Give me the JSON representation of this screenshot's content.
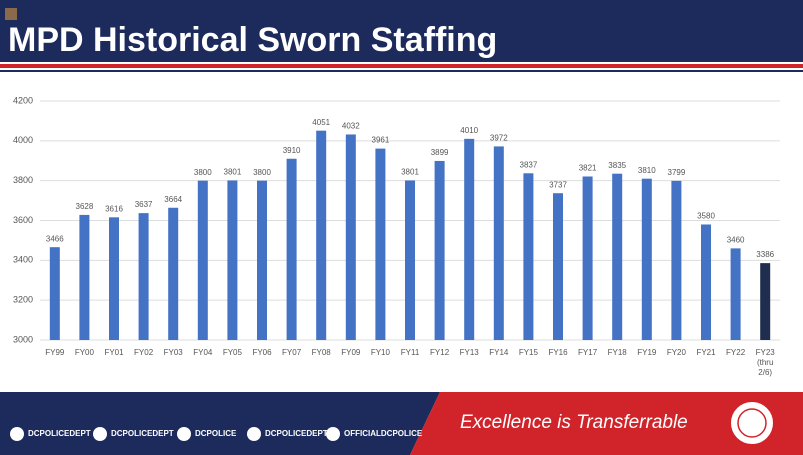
{
  "header": {
    "title": "MPD Historical Sworn Staffing"
  },
  "chart_data": {
    "type": "bar",
    "categories": [
      "FY99",
      "FY00",
      "FY01",
      "FY02",
      "FY03",
      "FY04",
      "FY05",
      "FY06",
      "FY07",
      "FY08",
      "FY09",
      "FY10",
      "FY11",
      "FY12",
      "FY13",
      "FY14",
      "FY15",
      "FY16",
      "FY17",
      "FY18",
      "FY19",
      "FY20",
      "FY21",
      "FY22",
      "FY23 (thru 2/6)"
    ],
    "values": [
      3466,
      3628,
      3616,
      3637,
      3664,
      3800,
      3801,
      3800,
      3910,
      4051,
      4032,
      3961,
      3801,
      3899,
      4010,
      3972,
      3837,
      3737,
      3821,
      3835,
      3810,
      3799,
      3580,
      3460,
      3386
    ],
    "colors": [
      "#4472c4",
      "#4472c4",
      "#4472c4",
      "#4472c4",
      "#4472c4",
      "#4472c4",
      "#4472c4",
      "#4472c4",
      "#4472c4",
      "#4472c4",
      "#4472c4",
      "#4472c4",
      "#4472c4",
      "#4472c4",
      "#4472c4",
      "#4472c4",
      "#4472c4",
      "#4472c4",
      "#4472c4",
      "#4472c4",
      "#4472c4",
      "#4472c4",
      "#4472c4",
      "#4472c4",
      "#1f2d4e"
    ],
    "ylim": [
      3000,
      4200
    ],
    "yticks": [
      3000,
      3200,
      3400,
      3600,
      3800,
      4000,
      4200
    ],
    "grid": true
  },
  "footer": {
    "handles": [
      "DCPOLICEDEPT",
      "DCPOLICEDEPT",
      "DCPOLICE",
      "DCPOLICEDEPT",
      "OFFICIALDCPOLICE"
    ],
    "slogan": "Excellence is Transferrable"
  }
}
